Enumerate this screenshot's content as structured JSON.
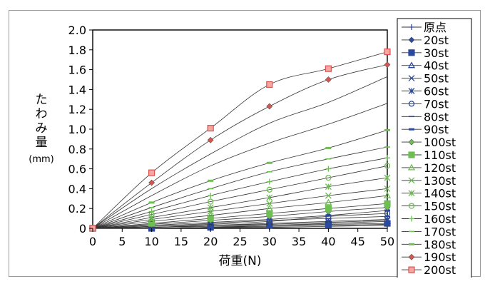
{
  "chart_data": {
    "type": "line",
    "xlabel": "荷重(N)",
    "ylabel": "たわみ量",
    "ylabel_unit": "(mm)",
    "xlim": [
      0,
      50
    ],
    "ylim": [
      0,
      2.0
    ],
    "x_ticks": [
      "0",
      "5",
      "10",
      "15",
      "20",
      "25",
      "30",
      "35",
      "40",
      "45",
      "50"
    ],
    "y_ticks": [
      "0",
      "0.2",
      "0.4",
      "0.6",
      "0.8",
      "1.0",
      "1.2",
      "1.4",
      "1.6",
      "1.8",
      "2.0"
    ],
    "grid": false,
    "legend_position": "right",
    "x": [
      0,
      10,
      20,
      30,
      40,
      50
    ],
    "series": [
      {
        "name": "原点",
        "color": "#2a4aa0",
        "marker": "plus",
        "values": [
          0,
          0.0,
          0.01,
          0.01,
          0.02,
          0.03
        ]
      },
      {
        "name": "20st",
        "color": "#2a4aa0",
        "marker": "diamond",
        "values": [
          0,
          0.0,
          0.01,
          0.02,
          0.03,
          0.04
        ]
      },
      {
        "name": "30st",
        "color": "#2a4aa0",
        "marker": "square",
        "values": [
          0,
          0.0,
          0.01,
          0.03,
          0.04,
          0.05
        ]
      },
      {
        "name": "40st",
        "color": "#2a4aa0",
        "marker": "triangle",
        "values": [
          0,
          0.01,
          0.02,
          0.03,
          0.05,
          0.07
        ]
      },
      {
        "name": "50st",
        "color": "#2a4aa0",
        "marker": "x",
        "values": [
          0,
          0.01,
          0.03,
          0.04,
          0.06,
          0.08
        ]
      },
      {
        "name": "60st",
        "color": "#2a4aa0",
        "marker": "asterisk",
        "values": [
          0,
          0.01,
          0.03,
          0.05,
          0.07,
          0.09
        ]
      },
      {
        "name": "70st",
        "color": "#2a4aa0",
        "marker": "circle",
        "values": [
          0,
          0.02,
          0.04,
          0.07,
          0.12,
          0.15
        ]
      },
      {
        "name": "80st",
        "color": "#2a4aa0",
        "marker": "dash",
        "values": [
          0,
          0.02,
          0.05,
          0.08,
          0.1,
          0.12
        ]
      },
      {
        "name": "90st",
        "color": "#2a4aa0",
        "marker": "bar",
        "values": [
          0,
          0.03,
          0.06,
          0.09,
          0.13,
          0.18
        ]
      },
      {
        "name": "100st",
        "color": "#6cbf50",
        "marker": "diamond",
        "values": [
          0,
          0.04,
          0.08,
          0.12,
          0.17,
          0.21
        ]
      },
      {
        "name": "110st",
        "color": "#6cbf50",
        "marker": "square",
        "values": [
          0,
          0.05,
          0.1,
          0.15,
          0.2,
          0.25
        ]
      },
      {
        "name": "120st",
        "color": "#6cbf50",
        "marker": "triangle",
        "values": [
          0,
          0.07,
          0.13,
          0.2,
          0.26,
          0.33
        ]
      },
      {
        "name": "130st",
        "color": "#6cbf50",
        "marker": "x",
        "values": [
          0,
          0.09,
          0.17,
          0.25,
          0.33,
          0.4
        ]
      },
      {
        "name": "140st",
        "color": "#6cbf50",
        "marker": "asterisk",
        "values": [
          0,
          0.11,
          0.21,
          0.31,
          0.42,
          0.51
        ]
      },
      {
        "name": "150st",
        "color": "#6cbf50",
        "marker": "circle",
        "values": [
          0,
          0.14,
          0.27,
          0.39,
          0.51,
          0.63
        ]
      },
      {
        "name": "160st",
        "color": "#6cbf50",
        "marker": "plus",
        "values": [
          0,
          0.17,
          0.33,
          0.47,
          0.6,
          0.71
        ]
      },
      {
        "name": "170st",
        "color": "#6cbf50",
        "marker": "dash",
        "values": [
          0,
          0.21,
          0.4,
          0.57,
          0.7,
          0.82
        ]
      },
      {
        "name": "180st",
        "color": "#6cbf50",
        "marker": "bar",
        "values": [
          0,
          0.26,
          0.48,
          0.66,
          0.81,
          0.99
        ]
      },
      {
        "name": "190st",
        "color": "#d9534f",
        "marker": "diamond",
        "values": [
          0,
          0.46,
          0.89,
          1.23,
          1.5,
          1.65
        ]
      },
      {
        "name": "200st",
        "color": "#d9534f",
        "marker": "square",
        "values": [
          0,
          0.56,
          1.01,
          1.45,
          1.61,
          1.78
        ]
      }
    ],
    "extra_curves": [
      {
        "values": [
          0,
          0.33,
          0.63,
          0.86,
          1.05,
          1.26
        ]
      },
      {
        "values": [
          0,
          0.4,
          0.75,
          1.06,
          1.27,
          1.53
        ]
      }
    ]
  }
}
